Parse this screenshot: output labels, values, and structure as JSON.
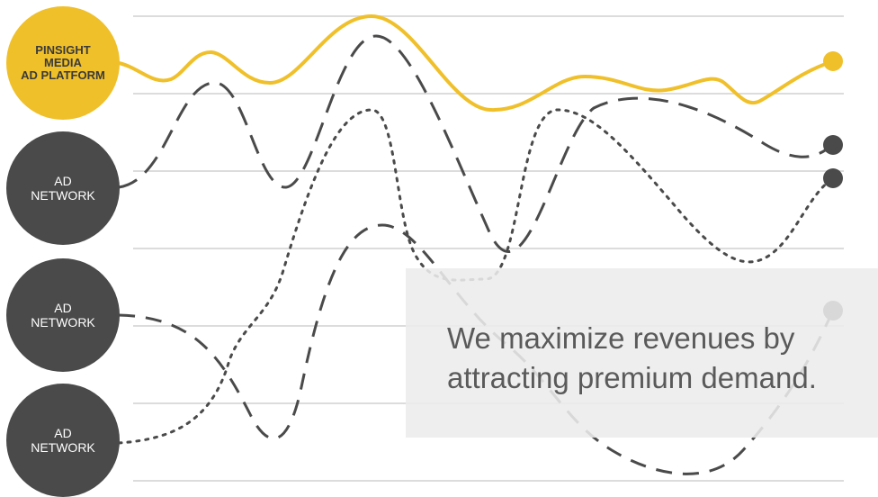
{
  "nodes": [
    {
      "lines": [
        "PINSIGHT",
        "MEDIA",
        "AD PLATFORM"
      ]
    },
    {
      "lines": [
        "AD",
        "NETWORK"
      ]
    },
    {
      "lines": [
        "AD",
        "NETWORK"
      ]
    },
    {
      "lines": [
        "AD",
        "NETWORK"
      ]
    }
  ],
  "tagline": {
    "line1": "We maximize revenues by",
    "line2": "attracting premium demand."
  },
  "colors": {
    "accent": "#f0c02a",
    "dark_node": "#4a4a4a",
    "line": "#4a4a4a",
    "grid": "#dcdcdc",
    "box": "#ececec"
  }
}
